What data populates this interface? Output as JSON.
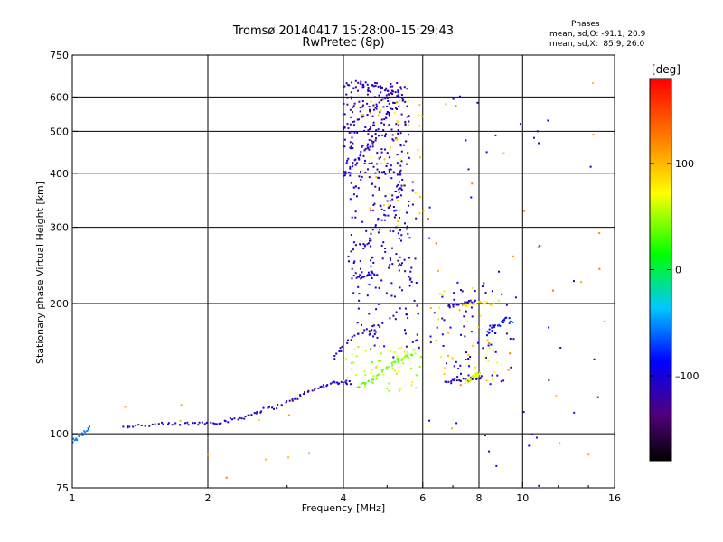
{
  "header": {
    "title_line1": "Tromsø 20140417 15:28:00–15:29:43",
    "title_line2": "RwPretec (8p)",
    "phases_label": "Phases",
    "stats_o": "mean, sd,O: -91.1, 20.9",
    "stats_x": "mean, sd,X:  85.9, 26.0"
  },
  "colorbar": {
    "unit_label": "[deg]",
    "ticks": [
      {
        "label": "100",
        "value": 100
      },
      {
        "label": "0",
        "value": 0
      },
      {
        "label": "–100",
        "value": -100
      }
    ],
    "range": [
      -180,
      180
    ]
  },
  "chart_data": {
    "type": "scatter",
    "xlabel": "Frequency [MHz]",
    "ylabel": "Stationary phase Virtual Height [km]",
    "xscale": "log",
    "yscale": "log",
    "xlim": [
      1,
      16
    ],
    "ylim": [
      75,
      750
    ],
    "xticks": [
      {
        "label": "1",
        "value": 1
      },
      {
        "label": "2",
        "value": 2
      },
      {
        "label": "4",
        "value": 4
      },
      {
        "label": "6",
        "value": 6
      },
      {
        "label": "8",
        "value": 8
      },
      {
        "label": "10",
        "value": 10
      },
      {
        "label": "16",
        "value": 16
      }
    ],
    "yticks": [
      {
        "label": "75",
        "value": 75
      },
      {
        "label": "100",
        "value": 100
      },
      {
        "label": "200",
        "value": 200
      },
      {
        "label": "300",
        "value": 300
      },
      {
        "label": "400",
        "value": 400
      },
      {
        "label": "500",
        "value": 500
      },
      {
        "label": "600",
        "value": 600
      },
      {
        "label": "750",
        "value": 750
      }
    ],
    "xgrid": [
      1,
      2,
      4,
      6,
      8,
      10
    ],
    "ygrid": [
      100,
      200,
      300,
      400,
      500,
      600
    ],
    "traces": [
      {
        "f": [
          1.0,
          1.03,
          1.06,
          1.1
        ],
        "h": [
          96,
          98,
          101,
          104
        ],
        "phase": -60
      },
      {
        "f": [
          1.3,
          1.4,
          1.55,
          1.7,
          1.85,
          2.0,
          2.15,
          2.3,
          2.45,
          2.6
        ],
        "h": [
          104,
          104.5,
          105,
          105,
          105.5,
          106,
          106.5,
          108,
          110,
          113
        ],
        "phase": -110
      },
      {
        "f": [
          2.6,
          2.8,
          3.0,
          3.2,
          3.4,
          3.6,
          3.8,
          4.0,
          4.2
        ],
        "h": [
          113,
          115,
          118,
          122,
          126,
          129,
          131,
          132,
          131
        ],
        "phase": -115
      },
      {
        "f": [
          4.3,
          4.5,
          4.7,
          4.9,
          5.1,
          5.3,
          5.5,
          5.7
        ],
        "h": [
          128,
          131,
          135,
          140,
          144,
          148,
          150,
          152
        ],
        "phase": 40
      },
      {
        "f": [
          3.8,
          4.0,
          4.3,
          4.6,
          4.9
        ],
        "h": [
          150,
          160,
          170,
          175,
          180
        ],
        "phase": -110
      },
      {
        "f": [
          4.2,
          4.4,
          4.6,
          4.8
        ],
        "h": [
          230,
          231,
          231,
          232
        ],
        "phase": -100
      },
      {
        "f": [
          4.0,
          4.1,
          4.3,
          4.5,
          4.8,
          5.1
        ],
        "h": [
          395,
          405,
          430,
          460,
          510,
          570
        ],
        "phase": -115
      },
      {
        "f": [
          4.0,
          4.3,
          4.6,
          4.9,
          5.2
        ],
        "h": [
          510,
          530,
          560,
          590,
          620
        ],
        "phase": -105
      },
      {
        "f": [
          4.0,
          4.3,
          4.6,
          4.9,
          5.2,
          5.5
        ],
        "h": [
          640,
          650,
          640,
          630,
          610,
          590
        ],
        "phase": -110
      },
      {
        "f": [
          4.5,
          4.7,
          5.0,
          5.2,
          5.5
        ],
        "h": [
          270,
          300,
          330,
          360,
          380
        ],
        "phase": -110
      },
      {
        "f": [
          6.8,
          7.0,
          7.3,
          7.6,
          7.9
        ],
        "h": [
          197,
          198,
          200,
          201,
          202
        ],
        "phase": -110
      },
      {
        "f": [
          6.7,
          7.0,
          7.4,
          7.8,
          8.1
        ],
        "h": [
          132,
          133,
          133,
          134,
          135
        ],
        "phase": -110
      },
      {
        "f": [
          7.4,
          7.6,
          7.9,
          8.3,
          8.7
        ],
        "h": [
          197,
          199,
          200,
          200,
          199
        ],
        "phase": 80
      },
      {
        "f": [
          7.5,
          7.7,
          7.8,
          7.9,
          8.0
        ],
        "h": [
          132,
          134,
          136,
          137,
          138
        ],
        "phase": 60
      },
      {
        "f": [
          8.3,
          8.6,
          8.9,
          9.2,
          9.5
        ],
        "h": [
          170,
          175,
          180,
          185,
          180
        ],
        "phase": -80
      }
    ],
    "clusters": [
      {
        "f": [
          4.0,
          5.6
        ],
        "h": [
          400,
          650
        ],
        "phase": -115,
        "count": 210
      },
      {
        "f": [
          4.1,
          5.8
        ],
        "h": [
          240,
          400
        ],
        "phase": -110,
        "count": 130
      },
      {
        "f": [
          4.2,
          5.9
        ],
        "h": [
          150,
          240
        ],
        "phase": -105,
        "count": 70
      },
      {
        "f": [
          4.0,
          6.0
        ],
        "h": [
          125,
          160
        ],
        "phase": 60,
        "count": 60
      },
      {
        "f": [
          4.2,
          6.0
        ],
        "h": [
          300,
          600
        ],
        "phase": 90,
        "count": 40
      },
      {
        "f": [
          6.2,
          9.5
        ],
        "h": [
          130,
          220
        ],
        "phase": -110,
        "count": 60
      },
      {
        "f": [
          6.5,
          9.0
        ],
        "h": [
          130,
          220
        ],
        "phase": 80,
        "count": 30
      },
      {
        "f": [
          6.0,
          16.0
        ],
        "h": [
          75,
          650
        ],
        "phase": -100,
        "count": 45
      },
      {
        "f": [
          6.0,
          16.0
        ],
        "h": [
          80,
          650
        ],
        "phase": 110,
        "count": 30
      },
      {
        "f": [
          1.2,
          3.5
        ],
        "h": [
          78,
          125
        ],
        "phase": 110,
        "count": 10
      }
    ]
  }
}
